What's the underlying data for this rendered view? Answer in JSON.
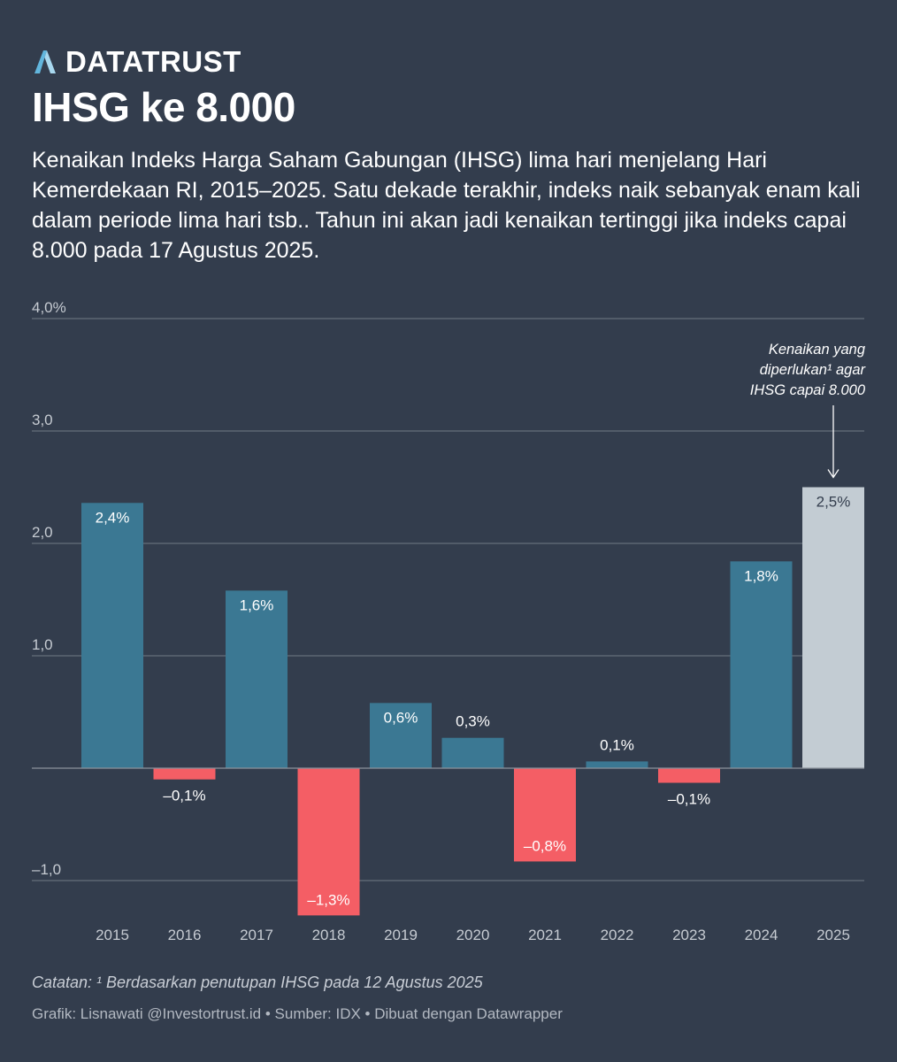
{
  "brand": {
    "name": "DATATRUST",
    "logo_icon": "datatrust-logo-icon",
    "logo_color": "#62b6dd"
  },
  "title": "IHSG ke 8.000",
  "subtitle": "Kenaikan Indeks Harga Saham Gabungan (IHSG) lima hari menjelang Hari Kemerdekaan RI, 2015–2025. Satu dekade terakhir, indeks naik sebanyak enam kali dalam periode lima hari tsb.. Tahun ini akan jadi kenaikan tertinggi jika indeks capai 8.000 pada 17 Agustus 2025.",
  "chart_data": {
    "type": "bar",
    "title": "IHSG ke 8.000",
    "xlabel": "",
    "ylabel": "",
    "ylim": [
      -1.3,
      4.0
    ],
    "grid": true,
    "yticks": [
      {
        "value": 4.0,
        "label": "4,0%"
      },
      {
        "value": 3.0,
        "label": "3,0"
      },
      {
        "value": 2.0,
        "label": "2,0"
      },
      {
        "value": 1.0,
        "label": "1,0"
      },
      {
        "value": -1.0,
        "label": "–1,0"
      }
    ],
    "categories": [
      "2015",
      "2016",
      "2017",
      "2018",
      "2019",
      "2020",
      "2021",
      "2022",
      "2023",
      "2024",
      "2025"
    ],
    "values": [
      2.36,
      -0.1,
      1.58,
      -1.31,
      0.58,
      0.27,
      -0.83,
      0.06,
      -0.13,
      1.84,
      2.5
    ],
    "labels": [
      "2,4%",
      "–0,1%",
      "1,6%",
      "–1,3%",
      "0,6%",
      "0,3%",
      "–0,8%",
      "0,1%",
      "–0,1%",
      "1,8%",
      "2,5%"
    ],
    "colors": {
      "positive": "#3b7893",
      "negative": "#f45e65",
      "projected": "#c3ccd3",
      "gridline": "#727a85",
      "tick_label": "#c6cbd2"
    },
    "projected_category": "2025",
    "annotation": {
      "category": "2025",
      "lines": [
        "Kenaikan yang",
        "diperlukan¹ agar",
        "IHSG capai 8.000"
      ]
    }
  },
  "note": "Catatan: ¹ Berdasarkan penutupan IHSG pada 12 Agustus 2025",
  "credit": "Grafik: Lisnawati @Investortrust.id • Sumber: IDX • Dibuat dengan Datawrapper"
}
